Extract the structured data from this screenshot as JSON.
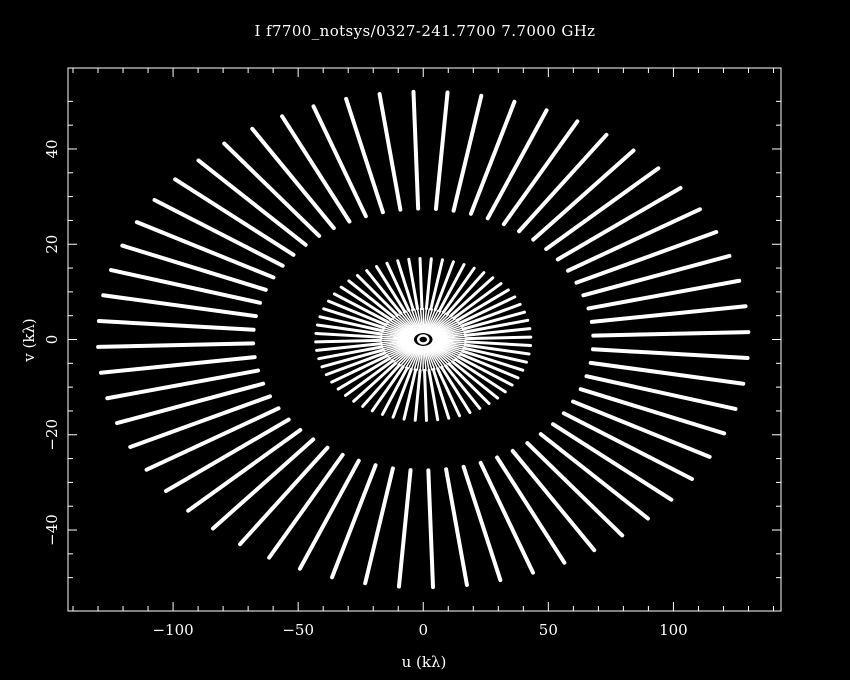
{
  "chart_data": {
    "type": "scatter",
    "title": "I f7700_notsys/0327-241.7700 7.7000 GHz",
    "xlabel": "u (kλ)",
    "ylabel": "v (kλ)",
    "xlim": [
      -142,
      143
    ],
    "ylim": [
      -57,
      57
    ],
    "xticks": [
      -100,
      -50,
      0,
      50,
      100
    ],
    "yticks": [
      -40,
      -20,
      0,
      20,
      40
    ],
    "xtick_labels": [
      "−100",
      "−50",
      "0",
      "50",
      "100"
    ],
    "ytick_labels": [
      "−40",
      "−20",
      "0",
      "20",
      "40"
    ],
    "grid": false,
    "colors": {
      "background": "#000000",
      "foreground": "#ffffff"
    },
    "rings": [
      {
        "name": "outer",
        "spokes": 60,
        "u_inner": 68,
        "u_outer": 130,
        "v_inner": 27.5,
        "v_outer": 52
      },
      {
        "name": "middle",
        "spokes": 60,
        "u_inner": 17,
        "u_outer": 43,
        "v_inner": 6.5,
        "v_outer": 17
      },
      {
        "name": "inner",
        "spokes": 90,
        "u_inner": 4,
        "u_outer": 17,
        "v_inner": 1.5,
        "v_outer": 6.5
      }
    ]
  }
}
